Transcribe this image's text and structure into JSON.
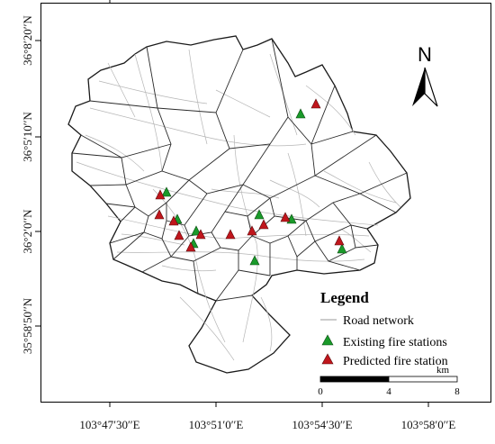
{
  "map": {
    "x_labels": [
      "103°47′30′′E",
      "103°51′0′′E",
      "103°54′30′′E",
      "103°58′0′′E"
    ],
    "y_labels": [
      "36°8′20′′N",
      "36°5′10′′N",
      "36°2′0′′N",
      "35°58′50′′N"
    ],
    "north_label": "N",
    "legend": {
      "title": "Legend",
      "items": [
        {
          "label": "Road network",
          "symbol": "line",
          "color": "#9a9a9a"
        },
        {
          "label": "Existing fire stations",
          "symbol": "triangle",
          "color": "#1a9a2a"
        },
        {
          "label": "Predicted fire station",
          "symbol": "triangle",
          "color": "#c0161c"
        }
      ]
    },
    "scale_bar": {
      "unit": "km",
      "ticks": [
        "0",
        "4",
        "8"
      ]
    },
    "colors": {
      "existing": "#1a9a2a",
      "predicted": "#c0161c",
      "road": "#b5b5b5",
      "boundary": "#1a1a1a"
    }
  }
}
